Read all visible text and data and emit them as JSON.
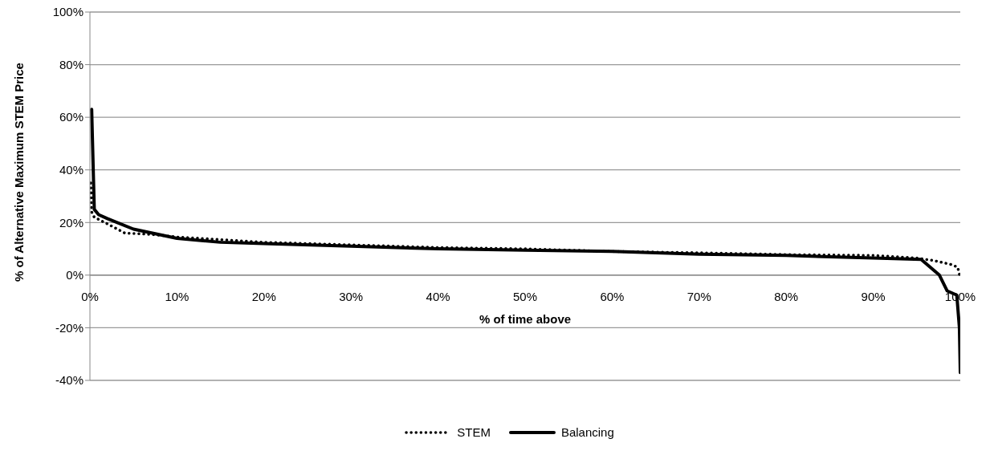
{
  "chart_data": {
    "type": "line",
    "xlabel": "% of time above",
    "ylabel": "% of Alternative Maximum STEM Price",
    "xlim": [
      0,
      100
    ],
    "xticks": [
      {
        "value": 0,
        "label": "0%"
      },
      {
        "value": 10,
        "label": "10%"
      },
      {
        "value": 20,
        "label": "20%"
      },
      {
        "value": 30,
        "label": "30%"
      },
      {
        "value": 40,
        "label": "40%"
      },
      {
        "value": 50,
        "label": "50%"
      },
      {
        "value": 60,
        "label": "60%"
      },
      {
        "value": 70,
        "label": "70%"
      },
      {
        "value": 80,
        "label": "80%"
      },
      {
        "value": 90,
        "label": "90%"
      },
      {
        "value": 100,
        "label": "100%"
      }
    ],
    "ylim": [
      -40,
      100
    ],
    "yticks": [
      {
        "value": -40,
        "label": "-40%"
      },
      {
        "value": -20,
        "label": "-20%"
      },
      {
        "value": 0,
        "label": "0%"
      },
      {
        "value": 20,
        "label": "20%"
      },
      {
        "value": 40,
        "label": "40%"
      },
      {
        "value": 60,
        "label": "60%"
      },
      {
        "value": 80,
        "label": "80%"
      },
      {
        "value": 100,
        "label": "100%"
      }
    ],
    "grid": "y",
    "legend": "bottom",
    "marker": "none",
    "series": [
      {
        "name": "STEM",
        "color": "#000000",
        "line_style": "dotted",
        "x": [
          0.1,
          0.2,
          0.5,
          2,
          4,
          7,
          10,
          15,
          20,
          30,
          40,
          50,
          60,
          70,
          80,
          90,
          95,
          97,
          99,
          99.7,
          100
        ],
        "values": [
          35,
          24,
          22,
          19.5,
          16,
          15.5,
          14.5,
          13.5,
          12.5,
          11.5,
          10.5,
          10,
          9,
          8.5,
          7.8,
          7.5,
          6.5,
          5.5,
          4,
          3,
          -1
        ]
      },
      {
        "name": "Balancing",
        "color": "#000000",
        "line_style": "solid",
        "x": [
          0.2,
          0.5,
          1,
          2,
          5,
          10,
          15,
          20,
          30,
          40,
          50,
          60,
          70,
          80,
          90,
          95.5,
          97.6,
          98.5,
          99.6,
          99.9,
          100
        ],
        "values": [
          63,
          25,
          23,
          21.5,
          17.5,
          14,
          12.5,
          12,
          11,
          10,
          9.5,
          9,
          8,
          7.5,
          6.5,
          6,
          0,
          -6,
          -7.6,
          -20,
          -37
        ]
      }
    ]
  }
}
